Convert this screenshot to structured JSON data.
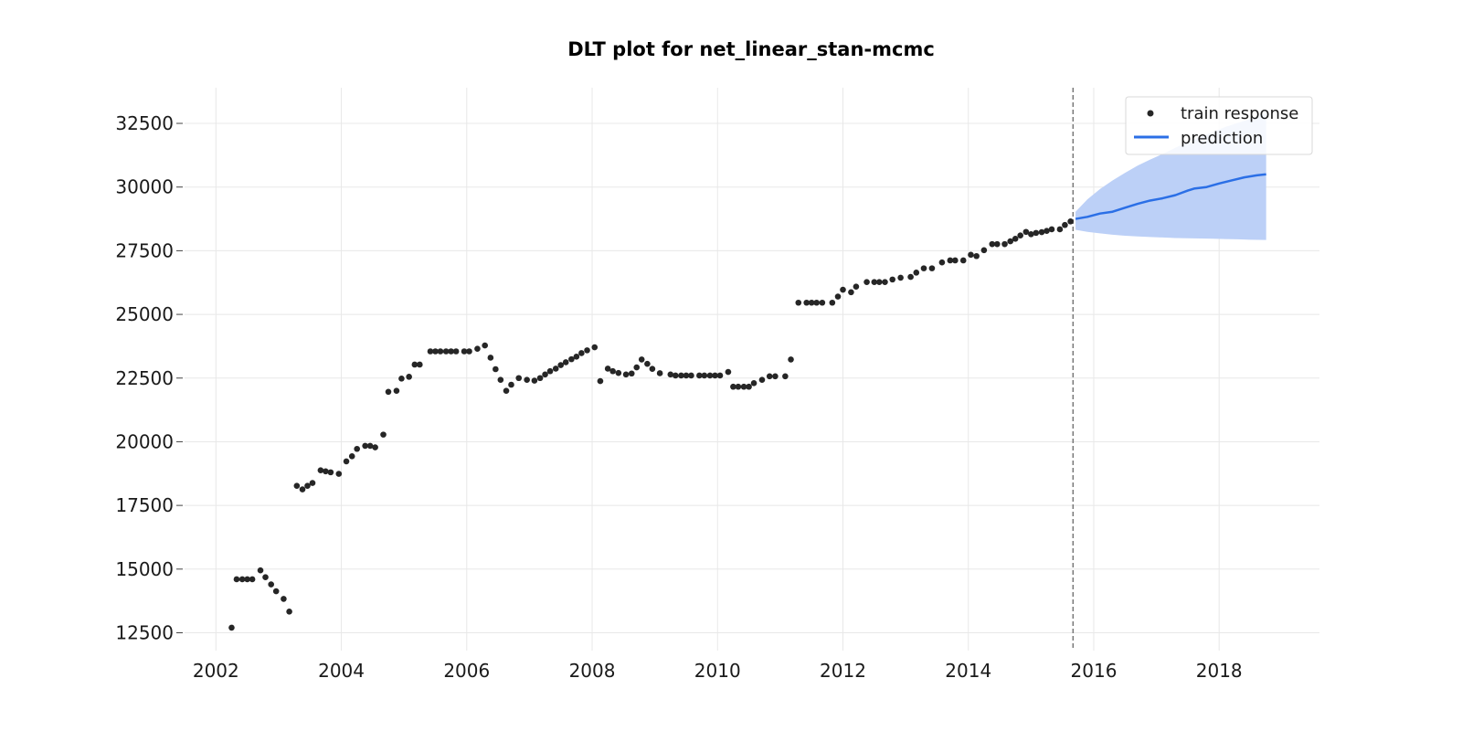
{
  "chart_data": {
    "type": "line",
    "title": "DLT plot for net_linear_stan-mcmc",
    "xlabel": "",
    "ylabel": "",
    "x_ticks": [
      "2002",
      "2004",
      "2006",
      "2008",
      "2010",
      "2012",
      "2014",
      "2016",
      "2018"
    ],
    "y_ticks": [
      "12500",
      "15000",
      "17500",
      "20000",
      "22500",
      "25000",
      "27500",
      "30000",
      "32500"
    ],
    "xlim": [
      2001.5,
      2019.6
    ],
    "ylim": [
      11800,
      33900
    ],
    "grid": true,
    "legend_position": "top-right",
    "forecast_start": 2015.67,
    "colors": {
      "train_points": "#262626",
      "prediction_line": "#2b6fe6",
      "prediction_band": "#bcd0f7",
      "cutoff_line": "#777777",
      "grid": "#e8e8e8"
    },
    "series": [
      {
        "name": "train response",
        "kind": "scatter",
        "points": [
          [
            2002.25,
            12700
          ],
          [
            2002.33,
            14600
          ],
          [
            2002.42,
            14600
          ],
          [
            2002.5,
            14600
          ],
          [
            2002.58,
            14600
          ],
          [
            2002.71,
            14950
          ],
          [
            2002.79,
            14680
          ],
          [
            2002.88,
            14400
          ],
          [
            2002.96,
            14130
          ],
          [
            2003.08,
            13830
          ],
          [
            2003.17,
            13330
          ],
          [
            2003.29,
            18270
          ],
          [
            2003.38,
            18130
          ],
          [
            2003.46,
            18270
          ],
          [
            2003.54,
            18380
          ],
          [
            2003.67,
            18880
          ],
          [
            2003.75,
            18840
          ],
          [
            2003.83,
            18800
          ],
          [
            2003.96,
            18740
          ],
          [
            2004.08,
            19230
          ],
          [
            2004.17,
            19430
          ],
          [
            2004.25,
            19720
          ],
          [
            2004.38,
            19840
          ],
          [
            2004.46,
            19840
          ],
          [
            2004.54,
            19780
          ],
          [
            2004.67,
            20280
          ],
          [
            2004.75,
            21960
          ],
          [
            2004.88,
            22000
          ],
          [
            2004.96,
            22480
          ],
          [
            2005.08,
            22550
          ],
          [
            2005.17,
            23030
          ],
          [
            2005.25,
            23030
          ],
          [
            2005.42,
            23550
          ],
          [
            2005.5,
            23550
          ],
          [
            2005.58,
            23550
          ],
          [
            2005.67,
            23550
          ],
          [
            2005.75,
            23550
          ],
          [
            2005.83,
            23550
          ],
          [
            2005.96,
            23550
          ],
          [
            2006.04,
            23550
          ],
          [
            2006.17,
            23650
          ],
          [
            2006.29,
            23780
          ],
          [
            2006.38,
            23300
          ],
          [
            2006.46,
            22850
          ],
          [
            2006.54,
            22430
          ],
          [
            2006.63,
            22000
          ],
          [
            2006.71,
            22240
          ],
          [
            2006.83,
            22500
          ],
          [
            2006.96,
            22430
          ],
          [
            2007.08,
            22400
          ],
          [
            2007.17,
            22500
          ],
          [
            2007.25,
            22640
          ],
          [
            2007.33,
            22770
          ],
          [
            2007.42,
            22870
          ],
          [
            2007.5,
            23010
          ],
          [
            2007.58,
            23120
          ],
          [
            2007.67,
            23240
          ],
          [
            2007.75,
            23340
          ],
          [
            2007.83,
            23480
          ],
          [
            2007.92,
            23590
          ],
          [
            2008.04,
            23710
          ],
          [
            2008.13,
            22380
          ],
          [
            2008.25,
            22870
          ],
          [
            2008.33,
            22770
          ],
          [
            2008.42,
            22700
          ],
          [
            2008.54,
            22640
          ],
          [
            2008.63,
            22680
          ],
          [
            2008.71,
            22920
          ],
          [
            2008.79,
            23230
          ],
          [
            2008.88,
            23060
          ],
          [
            2008.96,
            22860
          ],
          [
            2009.08,
            22690
          ],
          [
            2009.25,
            22640
          ],
          [
            2009.33,
            22600
          ],
          [
            2009.42,
            22600
          ],
          [
            2009.5,
            22600
          ],
          [
            2009.58,
            22600
          ],
          [
            2009.71,
            22600
          ],
          [
            2009.79,
            22600
          ],
          [
            2009.88,
            22600
          ],
          [
            2009.96,
            22600
          ],
          [
            2010.04,
            22600
          ],
          [
            2010.17,
            22740
          ],
          [
            2010.25,
            22160
          ],
          [
            2010.33,
            22160
          ],
          [
            2010.42,
            22160
          ],
          [
            2010.5,
            22160
          ],
          [
            2010.58,
            22300
          ],
          [
            2010.71,
            22430
          ],
          [
            2010.83,
            22570
          ],
          [
            2010.92,
            22570
          ],
          [
            2011.08,
            22570
          ],
          [
            2011.17,
            23230
          ],
          [
            2011.29,
            25460
          ],
          [
            2011.42,
            25460
          ],
          [
            2011.5,
            25460
          ],
          [
            2011.58,
            25460
          ],
          [
            2011.67,
            25460
          ],
          [
            2011.83,
            25460
          ],
          [
            2011.92,
            25700
          ],
          [
            2012.0,
            25970
          ],
          [
            2012.13,
            25870
          ],
          [
            2012.21,
            26090
          ],
          [
            2012.38,
            26270
          ],
          [
            2012.5,
            26270
          ],
          [
            2012.58,
            26270
          ],
          [
            2012.67,
            26270
          ],
          [
            2012.79,
            26370
          ],
          [
            2012.92,
            26440
          ],
          [
            2013.08,
            26470
          ],
          [
            2013.17,
            26640
          ],
          [
            2013.29,
            26810
          ],
          [
            2013.42,
            26810
          ],
          [
            2013.58,
            27040
          ],
          [
            2013.71,
            27120
          ],
          [
            2013.79,
            27120
          ],
          [
            2013.92,
            27120
          ],
          [
            2014.04,
            27340
          ],
          [
            2014.13,
            27290
          ],
          [
            2014.25,
            27520
          ],
          [
            2014.38,
            27760
          ],
          [
            2014.46,
            27760
          ],
          [
            2014.58,
            27760
          ],
          [
            2014.67,
            27870
          ],
          [
            2014.75,
            27970
          ],
          [
            2014.83,
            28100
          ],
          [
            2014.92,
            28240
          ],
          [
            2015.0,
            28150
          ],
          [
            2015.08,
            28200
          ],
          [
            2015.17,
            28230
          ],
          [
            2015.25,
            28280
          ],
          [
            2015.33,
            28340
          ],
          [
            2015.46,
            28340
          ],
          [
            2015.54,
            28510
          ],
          [
            2015.63,
            28650
          ]
        ]
      },
      {
        "name": "prediction",
        "kind": "line",
        "points": [
          [
            2015.71,
            28750
          ],
          [
            2015.9,
            28830
          ],
          [
            2016.1,
            28960
          ],
          [
            2016.3,
            29030
          ],
          [
            2016.5,
            29190
          ],
          [
            2016.7,
            29340
          ],
          [
            2016.9,
            29470
          ],
          [
            2017.1,
            29560
          ],
          [
            2017.3,
            29680
          ],
          [
            2017.5,
            29860
          ],
          [
            2017.6,
            29940
          ],
          [
            2017.8,
            30000
          ],
          [
            2018.0,
            30140
          ],
          [
            2018.2,
            30260
          ],
          [
            2018.4,
            30380
          ],
          [
            2018.6,
            30460
          ],
          [
            2018.75,
            30500
          ]
        ]
      }
    ],
    "prediction_interval": {
      "upper": [
        [
          2015.71,
          29030
        ],
        [
          2015.9,
          29520
        ],
        [
          2016.1,
          29920
        ],
        [
          2016.3,
          30260
        ],
        [
          2016.5,
          30560
        ],
        [
          2016.7,
          30840
        ],
        [
          2016.9,
          31080
        ],
        [
          2017.1,
          31300
        ],
        [
          2017.3,
          31540
        ],
        [
          2017.5,
          31780
        ],
        [
          2017.7,
          31980
        ],
        [
          2017.9,
          32160
        ],
        [
          2018.1,
          32360
        ],
        [
          2018.3,
          32520
        ],
        [
          2018.5,
          32680
        ],
        [
          2018.75,
          32900
        ]
      ],
      "lower": [
        [
          2015.71,
          28320
        ],
        [
          2015.9,
          28240
        ],
        [
          2016.1,
          28180
        ],
        [
          2016.3,
          28130
        ],
        [
          2016.5,
          28090
        ],
        [
          2016.7,
          28060
        ],
        [
          2016.9,
          28040
        ],
        [
          2017.1,
          28020
        ],
        [
          2017.3,
          28000
        ],
        [
          2017.5,
          27990
        ],
        [
          2017.7,
          27980
        ],
        [
          2017.9,
          27970
        ],
        [
          2018.1,
          27960
        ],
        [
          2018.3,
          27950
        ],
        [
          2018.5,
          27930
        ],
        [
          2018.75,
          27920
        ]
      ]
    }
  }
}
